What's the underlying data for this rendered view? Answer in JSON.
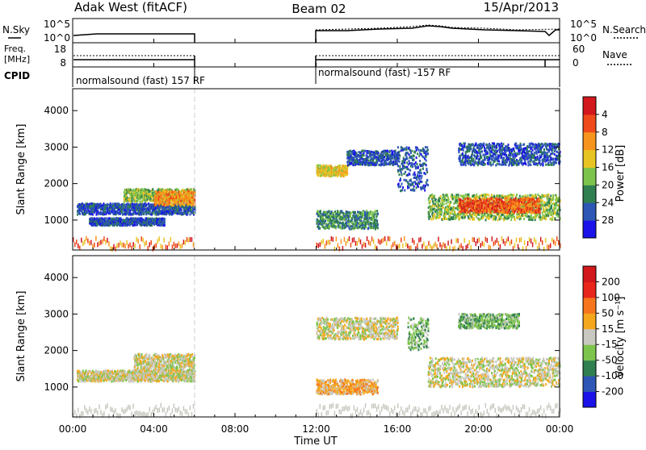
{
  "header": {
    "radar": "Adak West (fitACF)",
    "beam": "Beam 02",
    "date": "15/Apr/2013"
  },
  "noise_panel": {
    "left_label": "N.Sky",
    "right_label": "N.Search",
    "left_ticks": [
      "10^5",
      "10^0"
    ],
    "right_ticks": [
      "10^5",
      "10^0"
    ]
  },
  "freq_panel": {
    "left_label_line1": "Freq.",
    "left_label_line2": "[MHz]",
    "right_label": "Nave",
    "left_ticks": [
      "18",
      "8"
    ],
    "right_ticks": [
      "60",
      "0"
    ]
  },
  "cpid_panel": {
    "label": "CPID",
    "segments": [
      {
        "start_hour": 0,
        "end_hour": 6,
        "text": "normalsound (fast) 157 RF"
      },
      {
        "start_hour": 12,
        "end_hour": 24,
        "text": "normalsound (fast) -157 RF"
      }
    ]
  },
  "x_axis": {
    "label": "Time UT",
    "tick_labels": [
      "00:00",
      "04:00",
      "08:00",
      "12:00",
      "16:00",
      "20:00",
      "00:00"
    ],
    "range_hours": [
      0,
      24
    ]
  },
  "power_panel": {
    "ylabel": "Slant Range [km]",
    "yticks": [
      "1000",
      "2000",
      "3000",
      "4000"
    ],
    "cbar_label": "Power [dB]",
    "cbar_ticks": [
      "4",
      "8",
      "12",
      "16",
      "20",
      "24",
      "28"
    ],
    "cbar_colors": [
      "#1a12e8",
      "#2d56b5",
      "#2f7f50",
      "#7dc44c",
      "#e8c422",
      "#f7941d",
      "#ee4a1a",
      "#d2171d"
    ]
  },
  "velocity_panel": {
    "ylabel": "Slant Range [km]",
    "yticks": [
      "1000",
      "2000",
      "3000",
      "4000"
    ],
    "cbar_label": "Velocity [m s⁻¹]",
    "cbar_ticks": [
      "200",
      "100",
      "50",
      "15",
      "-15",
      "-50",
      "-100",
      "-200"
    ],
    "cbar_colors": [
      "#1a12e8",
      "#2d56b5",
      "#2f7f50",
      "#7dc44c",
      "#c8c8c0",
      "#f5a81c",
      "#f7751d",
      "#e8261b",
      "#d2171d"
    ]
  },
  "chart_data": {
    "type": "heatmap",
    "x_range_hours": [
      0,
      24
    ],
    "y_range_km": [
      180,
      4600
    ],
    "power_bands": [
      {
        "t0": 0.2,
        "t1": 6.0,
        "r0": 1150,
        "r1": 1450,
        "level": 1
      },
      {
        "t0": 0.8,
        "t1": 4.5,
        "r0": 850,
        "r1": 1050,
        "level": 1
      },
      {
        "t0": 2.5,
        "t1": 6.0,
        "r0": 1500,
        "r1": 1850,
        "level": 3
      },
      {
        "t0": 4.0,
        "t1": 6.0,
        "r0": 1400,
        "r1": 1800,
        "level": 5
      },
      {
        "t0": 12.0,
        "t1": 15.0,
        "r0": 750,
        "r1": 1250,
        "level": 2
      },
      {
        "t0": 12.0,
        "t1": 13.5,
        "r0": 2200,
        "r1": 2500,
        "level": 4
      },
      {
        "t0": 13.5,
        "t1": 16.0,
        "r0": 2500,
        "r1": 2900,
        "level": 1
      },
      {
        "t0": 16.0,
        "t1": 17.5,
        "r0": 1800,
        "r1": 3000,
        "level": 1
      },
      {
        "t0": 17.5,
        "t1": 24.0,
        "r0": 1000,
        "r1": 1700,
        "level": 3
      },
      {
        "t0": 19.0,
        "t1": 23.0,
        "r0": 1200,
        "r1": 1600,
        "level": 6
      },
      {
        "t0": 19.0,
        "t1": 24.0,
        "r0": 2500,
        "r1": 3100,
        "level": 1
      }
    ],
    "velocity_bands": [
      {
        "t0": 0.2,
        "t1": 6.0,
        "r0": 1150,
        "r1": 1450,
        "level": 4
      },
      {
        "t0": 3.0,
        "t1": 6.0,
        "r0": 1450,
        "r1": 1900,
        "level": 4
      },
      {
        "t0": 12.0,
        "t1": 15.0,
        "r0": 800,
        "r1": 1200,
        "level": 5
      },
      {
        "t0": 12.0,
        "t1": 16.0,
        "r0": 2300,
        "r1": 2900,
        "level": 4
      },
      {
        "t0": 16.5,
        "t1": 17.5,
        "r0": 2000,
        "r1": 2900,
        "level": 3
      },
      {
        "t0": 17.5,
        "t1": 24.0,
        "r0": 1000,
        "r1": 1800,
        "level": 4
      },
      {
        "t0": 19.0,
        "t1": 22.0,
        "r0": 2600,
        "r1": 3000,
        "level": 3
      }
    ]
  }
}
